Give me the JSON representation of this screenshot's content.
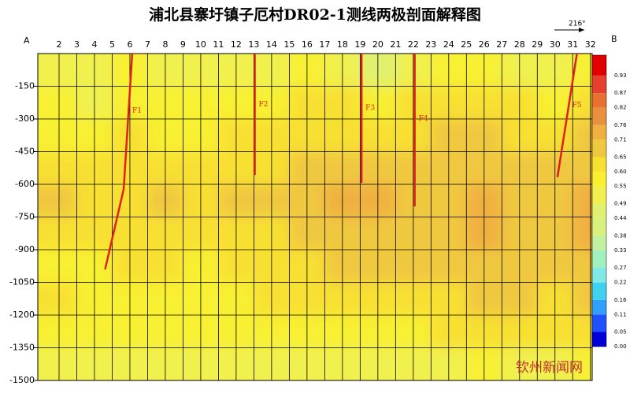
{
  "chart_data": {
    "type": "heatmap",
    "title": "浦北县寨圩镇子厄村DR02-1测线两极剖面解释图",
    "left_label": "A",
    "right_label": "B",
    "direction_label": "216°",
    "watermark": "钦州新闻网",
    "xlim": [
      0.8,
      32.1
    ],
    "ylim": [
      -1500,
      0
    ],
    "xticks": [
      2,
      3,
      4,
      5,
      6,
      7,
      8,
      9,
      10,
      11,
      12,
      13,
      14,
      15,
      16,
      17,
      18,
      19,
      20,
      21,
      22,
      23,
      24,
      25,
      26,
      27,
      28,
      29,
      30,
      31,
      32
    ],
    "yticks": [
      -150,
      -300,
      -450,
      -600,
      -750,
      -900,
      -1050,
      -1200,
      -1350,
      -1500
    ],
    "grid": true,
    "x": [
      2,
      4,
      6,
      8,
      10,
      12,
      14,
      16,
      18,
      20,
      22,
      24,
      26,
      28,
      30,
      32
    ],
    "y": [
      -75,
      -225,
      -375,
      -525,
      -675,
      -825,
      -975,
      -1125,
      -1275,
      -1425
    ],
    "z": [
      [
        0.5,
        0.52,
        0.55,
        0.52,
        0.5,
        0.5,
        0.52,
        0.55,
        0.5,
        0.48,
        0.52,
        0.55,
        0.55,
        0.52,
        0.5,
        0.55
      ],
      [
        0.55,
        0.52,
        0.58,
        0.55,
        0.55,
        0.55,
        0.58,
        0.6,
        0.6,
        0.58,
        0.6,
        0.62,
        0.62,
        0.6,
        0.58,
        0.62
      ],
      [
        0.58,
        0.58,
        0.6,
        0.58,
        0.58,
        0.6,
        0.6,
        0.62,
        0.62,
        0.62,
        0.63,
        0.65,
        0.65,
        0.63,
        0.62,
        0.66
      ],
      [
        0.6,
        0.6,
        0.62,
        0.6,
        0.6,
        0.62,
        0.63,
        0.65,
        0.66,
        0.66,
        0.66,
        0.67,
        0.68,
        0.66,
        0.65,
        0.68
      ],
      [
        0.68,
        0.62,
        0.64,
        0.66,
        0.62,
        0.66,
        0.66,
        0.7,
        0.72,
        0.72,
        0.7,
        0.7,
        0.75,
        0.7,
        0.68,
        0.72
      ],
      [
        0.62,
        0.6,
        0.62,
        0.64,
        0.6,
        0.62,
        0.64,
        0.66,
        0.7,
        0.7,
        0.68,
        0.68,
        0.72,
        0.7,
        0.68,
        0.72
      ],
      [
        0.58,
        0.58,
        0.6,
        0.6,
        0.58,
        0.6,
        0.62,
        0.64,
        0.66,
        0.66,
        0.65,
        0.66,
        0.7,
        0.68,
        0.66,
        0.7
      ],
      [
        0.6,
        0.58,
        0.58,
        0.58,
        0.58,
        0.58,
        0.6,
        0.62,
        0.62,
        0.62,
        0.62,
        0.64,
        0.7,
        0.66,
        0.64,
        0.7
      ],
      [
        0.55,
        0.55,
        0.56,
        0.56,
        0.55,
        0.56,
        0.58,
        0.58,
        0.58,
        0.58,
        0.58,
        0.6,
        0.62,
        0.6,
        0.6,
        0.62
      ],
      [
        0.52,
        0.52,
        0.52,
        0.52,
        0.52,
        0.52,
        0.52,
        0.52,
        0.52,
        0.52,
        0.52,
        0.54,
        0.55,
        0.54,
        0.54,
        0.55
      ]
    ],
    "colorbar_ticks": [
      {
        "value": 0,
        "label": "0.00"
      },
      {
        "value": 0.05,
        "label": "0.05"
      },
      {
        "value": 0.11,
        "label": "0.11"
      },
      {
        "value": 0.16,
        "label": "0.16"
      },
      {
        "value": 0.22,
        "label": "0.22"
      },
      {
        "value": 0.27,
        "label": "0.27"
      },
      {
        "value": 0.33,
        "label": "0.33"
      },
      {
        "value": 0.38,
        "label": "0.38"
      },
      {
        "value": 0.44,
        "label": "0.44"
      },
      {
        "value": 0.49,
        "label": "0.49"
      },
      {
        "value": 0.55,
        "label": "0.55"
      },
      {
        "value": 0.6,
        "label": "0.60"
      },
      {
        "value": 0.65,
        "label": "0.65"
      },
      {
        "value": 0.71,
        "label": "0.71"
      },
      {
        "value": 0.76,
        "label": "0.76"
      },
      {
        "value": 0.82,
        "label": "0.82"
      },
      {
        "value": 0.87,
        "label": "0.87"
      },
      {
        "value": 0.93,
        "label": "0.93"
      }
    ],
    "colorbar_max": 1,
    "colors": [
      "#0000d8",
      "#2050ff",
      "#30a0ff",
      "#40d0f0",
      "#80e8e8",
      "#a0f0c0",
      "#c0f0a0",
      "#d8f080",
      "#e0f070",
      "#f0f050",
      "#f8f030",
      "#f8e030",
      "#f0c840",
      "#f0b040",
      "#e89040",
      "#e87030",
      "#e84030",
      "#e00000"
    ],
    "line_color": "#e02020",
    "faults": [
      {
        "name": "F1",
        "x": [
          6.13,
          5.65,
          4.6
        ],
        "y": [
          0,
          -622,
          -990
        ]
      },
      {
        "name": "F2",
        "x": [
          13.05,
          13.05
        ],
        "y": [
          0,
          -557
        ]
      },
      {
        "name": "F3",
        "x": [
          19.08,
          19.08
        ],
        "y": [
          0,
          -593
        ]
      },
      {
        "name": "F4",
        "x": [
          22.08,
          22.08
        ],
        "y": [
          0,
          -701
        ]
      },
      {
        "name": "F5",
        "x": [
          31.24,
          30.14
        ],
        "y": [
          0,
          -567
        ]
      }
    ]
  }
}
